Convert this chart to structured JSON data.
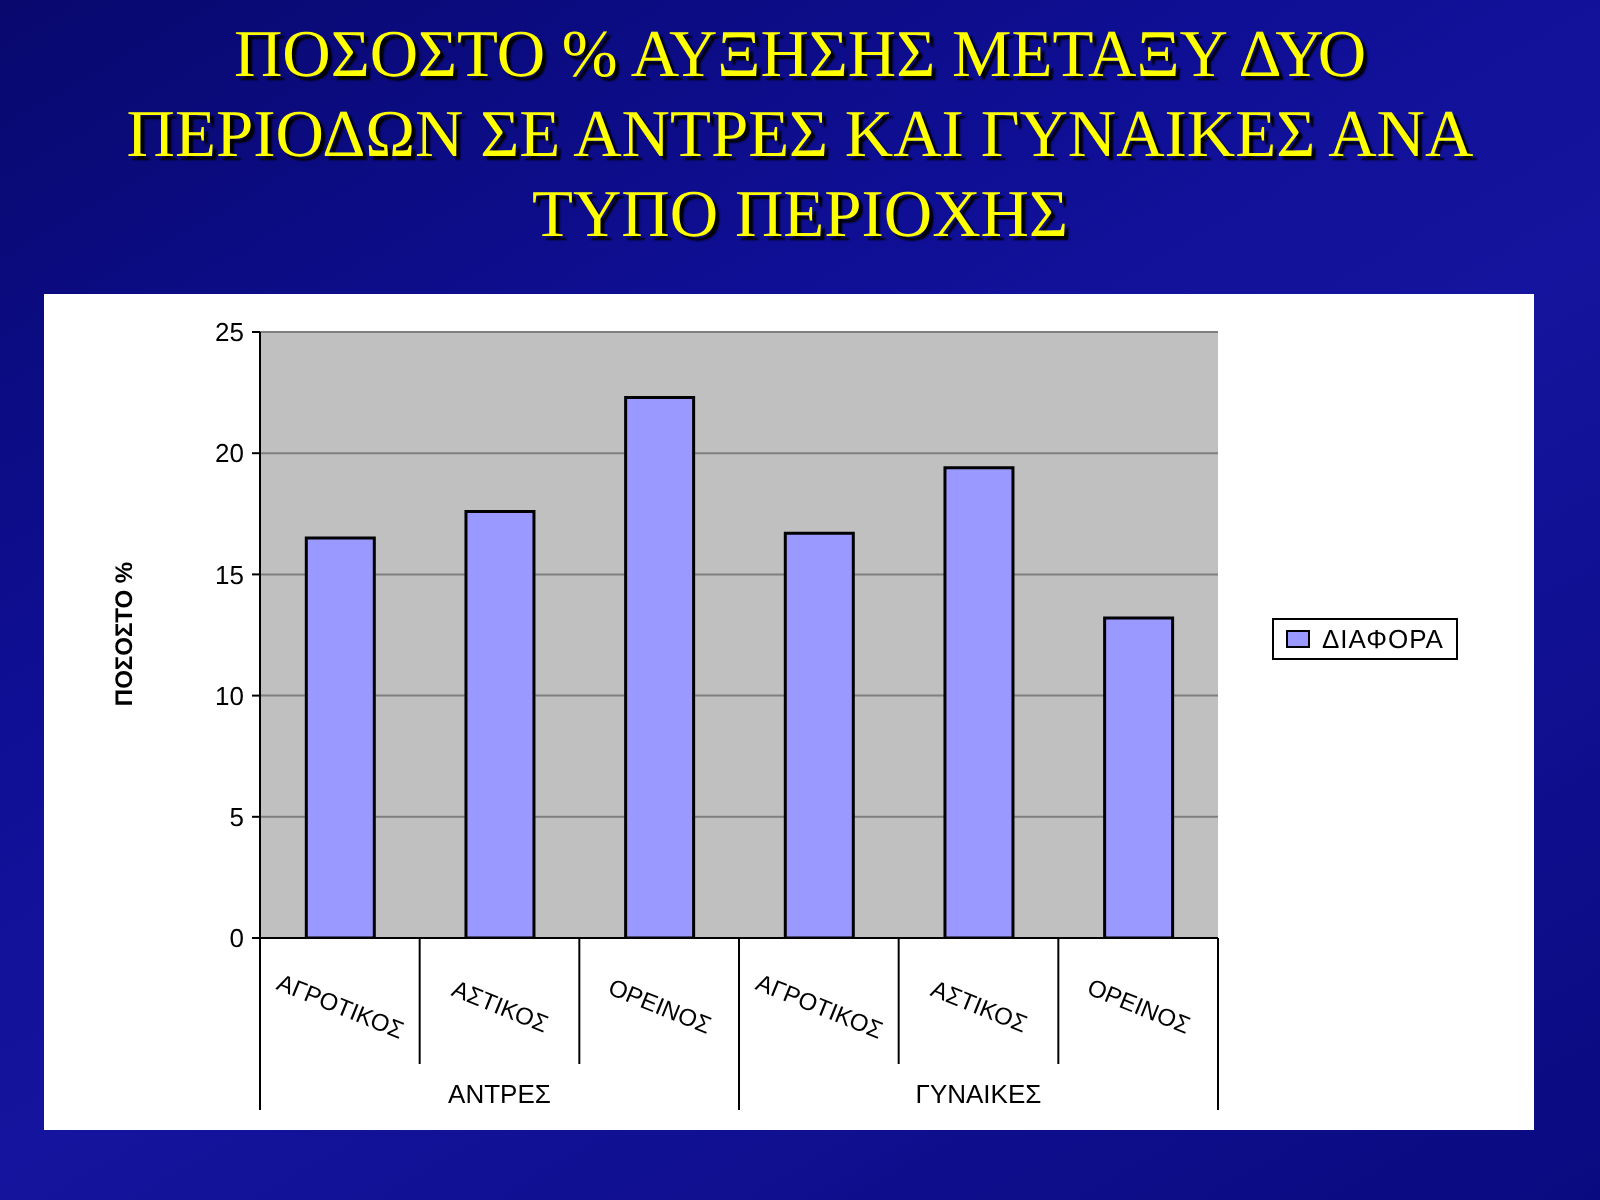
{
  "chart_data": {
    "type": "bar",
    "title": "ΠΟΣΟΣΤΟ % ΑΥΞΗΣΗΣ ΜΕΤΑΞΥ ΔΥΟ ΠΕΡΙΟΔΩΝ ΣΕ ΑΝΤΡΕΣ ΚΑΙ ΓΥΝΑΙΚΕΣ ΑΝΑ ΤΥΠΟ ΠΕΡΙΟΧΗΣ",
    "ylabel": "ΠΟΣΟΣΤΟ %",
    "categories": [
      "ΑΓΡΟΤΙΚΟΣ",
      "ΑΣΤΙΚΟΣ",
      "ΟΡΕΙΝΟΣ",
      "ΑΓΡΟΤΙΚΟΣ",
      "ΑΣΤΙΚΟΣ",
      "ΟΡΕΙΝΟΣ"
    ],
    "series": [
      {
        "name": "ΔΙΑΦΟΡΑ",
        "color": "#9999ff",
        "values": [
          16.5,
          17.6,
          22.3,
          16.7,
          19.4,
          13.2
        ]
      }
    ],
    "ylim": [
      0,
      25
    ],
    "yticks": [
      0,
      5,
      10,
      15,
      20,
      25
    ],
    "grid": "y",
    "legend": "right",
    "annotations": [
      "ΑΝΤΡΕΣ",
      "ΓΥΝΑΙΚΕΣ"
    ]
  }
}
